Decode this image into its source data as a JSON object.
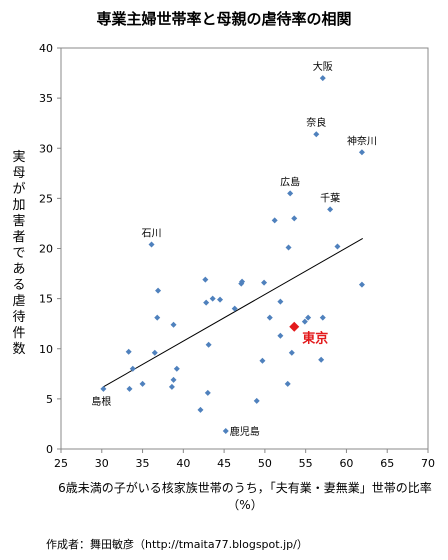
{
  "chart_data": {
    "type": "scatter",
    "title": "専業主婦世帯率と母親の虐待率の相関",
    "xlabel": "6歳未満の子がいる核家族世帯のうち，「夫有業・妻無業」世帯の比率（%）",
    "ylabel": "実母が加害者である虐待件数",
    "credit": "作成者：舞田敏彦（http://tmaita77.blogspot.jp/）",
    "xlim": [
      25,
      70
    ],
    "ylim": [
      0,
      40
    ],
    "xticks": [
      "25",
      "30",
      "35",
      "40",
      "45",
      "50",
      "55",
      "60",
      "65",
      "70"
    ],
    "yticks": [
      "0",
      "5",
      "10",
      "15",
      "20",
      "25",
      "30",
      "35",
      "40"
    ],
    "grid": false,
    "marker_color": "#4f81bd",
    "highlight_color": "#e31a1c",
    "trendline": {
      "x": [
        30.2,
        62
      ],
      "y": [
        6.2,
        21
      ]
    },
    "points": [
      {
        "x": 30.2,
        "y": 6.0,
        "label": "島根"
      },
      {
        "x": 33.3,
        "y": 9.7,
        "label": ""
      },
      {
        "x": 33.4,
        "y": 6.0,
        "label": ""
      },
      {
        "x": 33.8,
        "y": 8.0,
        "label": ""
      },
      {
        "x": 35.0,
        "y": 6.5,
        "label": ""
      },
      {
        "x": 36.1,
        "y": 20.4,
        "label": "石川"
      },
      {
        "x": 36.5,
        "y": 9.6,
        "label": ""
      },
      {
        "x": 36.8,
        "y": 13.1,
        "label": ""
      },
      {
        "x": 36.9,
        "y": 15.8,
        "label": ""
      },
      {
        "x": 38.6,
        "y": 6.2,
        "label": ""
      },
      {
        "x": 38.8,
        "y": 6.9,
        "label": ""
      },
      {
        "x": 38.8,
        "y": 12.4,
        "label": ""
      },
      {
        "x": 39.2,
        "y": 8.0,
        "label": ""
      },
      {
        "x": 42.1,
        "y": 3.9,
        "label": ""
      },
      {
        "x": 42.7,
        "y": 16.9,
        "label": ""
      },
      {
        "x": 42.8,
        "y": 14.6,
        "label": ""
      },
      {
        "x": 43.0,
        "y": 5.6,
        "label": ""
      },
      {
        "x": 43.1,
        "y": 10.4,
        "label": ""
      },
      {
        "x": 43.6,
        "y": 15.0,
        "label": ""
      },
      {
        "x": 44.5,
        "y": 14.9,
        "label": ""
      },
      {
        "x": 45.2,
        "y": 1.8,
        "label": "鹿児島"
      },
      {
        "x": 46.3,
        "y": 14.0,
        "label": ""
      },
      {
        "x": 47.1,
        "y": 16.5,
        "label": ""
      },
      {
        "x": 47.2,
        "y": 16.7,
        "label": ""
      },
      {
        "x": 49.0,
        "y": 4.8,
        "label": ""
      },
      {
        "x": 49.7,
        "y": 8.8,
        "label": ""
      },
      {
        "x": 49.9,
        "y": 16.6,
        "label": ""
      },
      {
        "x": 50.6,
        "y": 13.1,
        "label": ""
      },
      {
        "x": 51.2,
        "y": 22.8,
        "label": ""
      },
      {
        "x": 51.9,
        "y": 14.7,
        "label": ""
      },
      {
        "x": 51.9,
        "y": 11.3,
        "label": ""
      },
      {
        "x": 52.8,
        "y": 6.5,
        "label": ""
      },
      {
        "x": 52.9,
        "y": 20.1,
        "label": ""
      },
      {
        "x": 53.1,
        "y": 25.5,
        "label": "広島"
      },
      {
        "x": 53.3,
        "y": 9.6,
        "label": ""
      },
      {
        "x": 53.6,
        "y": 23.0,
        "label": ""
      },
      {
        "x": 54.9,
        "y": 12.7,
        "label": ""
      },
      {
        "x": 55.3,
        "y": 13.1,
        "label": ""
      },
      {
        "x": 56.3,
        "y": 31.4,
        "label": "奈良"
      },
      {
        "x": 56.9,
        "y": 8.9,
        "label": ""
      },
      {
        "x": 57.1,
        "y": 13.1,
        "label": ""
      },
      {
        "x": 57.1,
        "y": 37.0,
        "label": "大阪"
      },
      {
        "x": 58.0,
        "y": 23.9,
        "label": "千葉"
      },
      {
        "x": 58.9,
        "y": 20.2,
        "label": ""
      },
      {
        "x": 61.9,
        "y": 16.4,
        "label": ""
      },
      {
        "x": 61.9,
        "y": 29.6,
        "label": "神奈川"
      }
    ],
    "highlight": {
      "x": 53.6,
      "y": 12.2,
      "label": "東京"
    }
  }
}
